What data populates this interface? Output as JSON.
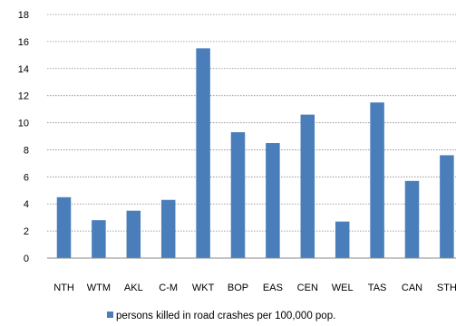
{
  "chart_data": {
    "type": "bar",
    "categories": [
      "NTH",
      "WTM",
      "AKL",
      "C-M",
      "WKT",
      "BOP",
      "EAS",
      "CEN",
      "WEL",
      "TAS",
      "CAN",
      "STH"
    ],
    "series": [
      {
        "name": "persons killed in road crashes per 100,000 pop.",
        "values": [
          4.5,
          2.8,
          3.5,
          4.3,
          15.5,
          9.3,
          8.5,
          10.6,
          2.7,
          11.5,
          5.7,
          7.6
        ],
        "color": "#4a7ebb"
      }
    ],
    "title": "",
    "xlabel": "",
    "ylabel": "",
    "ylim": [
      0,
      18
    ],
    "yticks": [
      0,
      2,
      4,
      6,
      8,
      10,
      12,
      14,
      16,
      18
    ],
    "grid": true,
    "legend": "bottom-center"
  }
}
